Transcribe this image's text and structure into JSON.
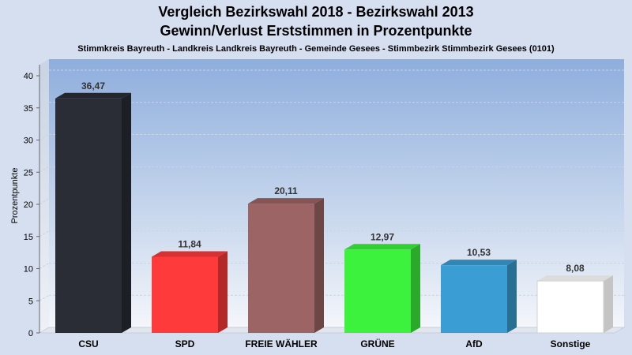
{
  "chart_data": {
    "type": "bar",
    "title": "Vergleich Bezirkswahl 2018 - Bezirkswahl 2013",
    "subtitle": "Gewinn/Verlust Erststimmen in Prozentpunkte",
    "description": "Stimmkreis Bayreuth - Landkreis Landkreis Bayreuth - Gemeinde Gesees - Stimmbezirk Stimmbezirk Gesees (0101)",
    "ylabel": "Prozentpunkte",
    "xlabel": "",
    "ylim": [
      0,
      40
    ],
    "yticks": [
      0,
      5,
      10,
      15,
      20,
      25,
      30,
      35,
      40
    ],
    "categories": [
      "CSU",
      "SPD",
      "FREIE WÄHLER",
      "GRÜNE",
      "AfD",
      "Sonstige"
    ],
    "values": [
      36.47,
      11.84,
      20.11,
      12.97,
      10.53,
      8.08
    ],
    "value_labels": [
      "36,47",
      "11,84",
      "20,11",
      "12,97",
      "10,53",
      "8,08"
    ],
    "colors": [
      "#2a2d36",
      "#ff3a3a",
      "#9c6464",
      "#3cf23c",
      "#3a9ed4",
      "#ffffff"
    ],
    "grid": true,
    "legend": "none"
  }
}
